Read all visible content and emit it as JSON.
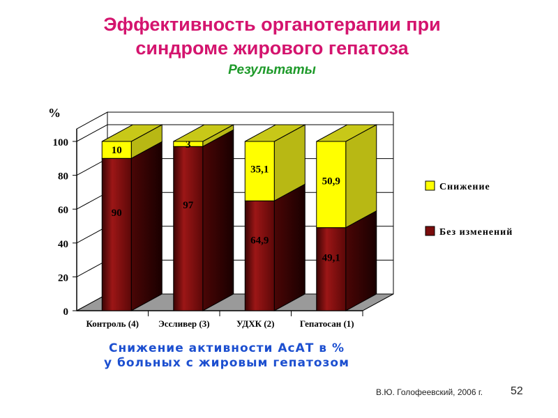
{
  "slide": {
    "title_line1": "Эффективность  органотерапии  при",
    "title_line2": "синдроме  жирового  гепатоза",
    "subtitle": "Результаты",
    "caption_line1": "Снижение активности АсАТ в %",
    "caption_line2": "у больных с жировым гепатозом",
    "author": "В.Ю. Голофеевский, 2006 г.",
    "slide_number": "52"
  },
  "colors": {
    "title": "#d4146e",
    "subtitle": "#1e9a2a",
    "caption": "#1c4fd0",
    "series_decrease": "#ffff00",
    "series_nochange": "#7a0c0c"
  },
  "chart_data": {
    "type": "bar",
    "stacked": true,
    "three_d": true,
    "ylabel": "%",
    "ylim": [
      0,
      100
    ],
    "yticks": [
      0,
      20,
      40,
      60,
      80,
      100
    ],
    "categories": [
      "Контроль (4)",
      "Эссливер (3)",
      "УДХК (2)",
      "Гепатосан (1)"
    ],
    "series": [
      {
        "name": "Без изменений",
        "values": [
          90,
          97,
          64.9,
          49.1
        ],
        "labels": [
          "90",
          "97",
          "64,9",
          "49,1"
        ]
      },
      {
        "name": "Снижение",
        "values": [
          10,
          3,
          35.1,
          50.9
        ],
        "labels": [
          "10",
          "3",
          "35,1",
          "50,9"
        ]
      }
    ],
    "legend": [
      "Снижение",
      "Без изменений"
    ],
    "legend_position": "right"
  }
}
